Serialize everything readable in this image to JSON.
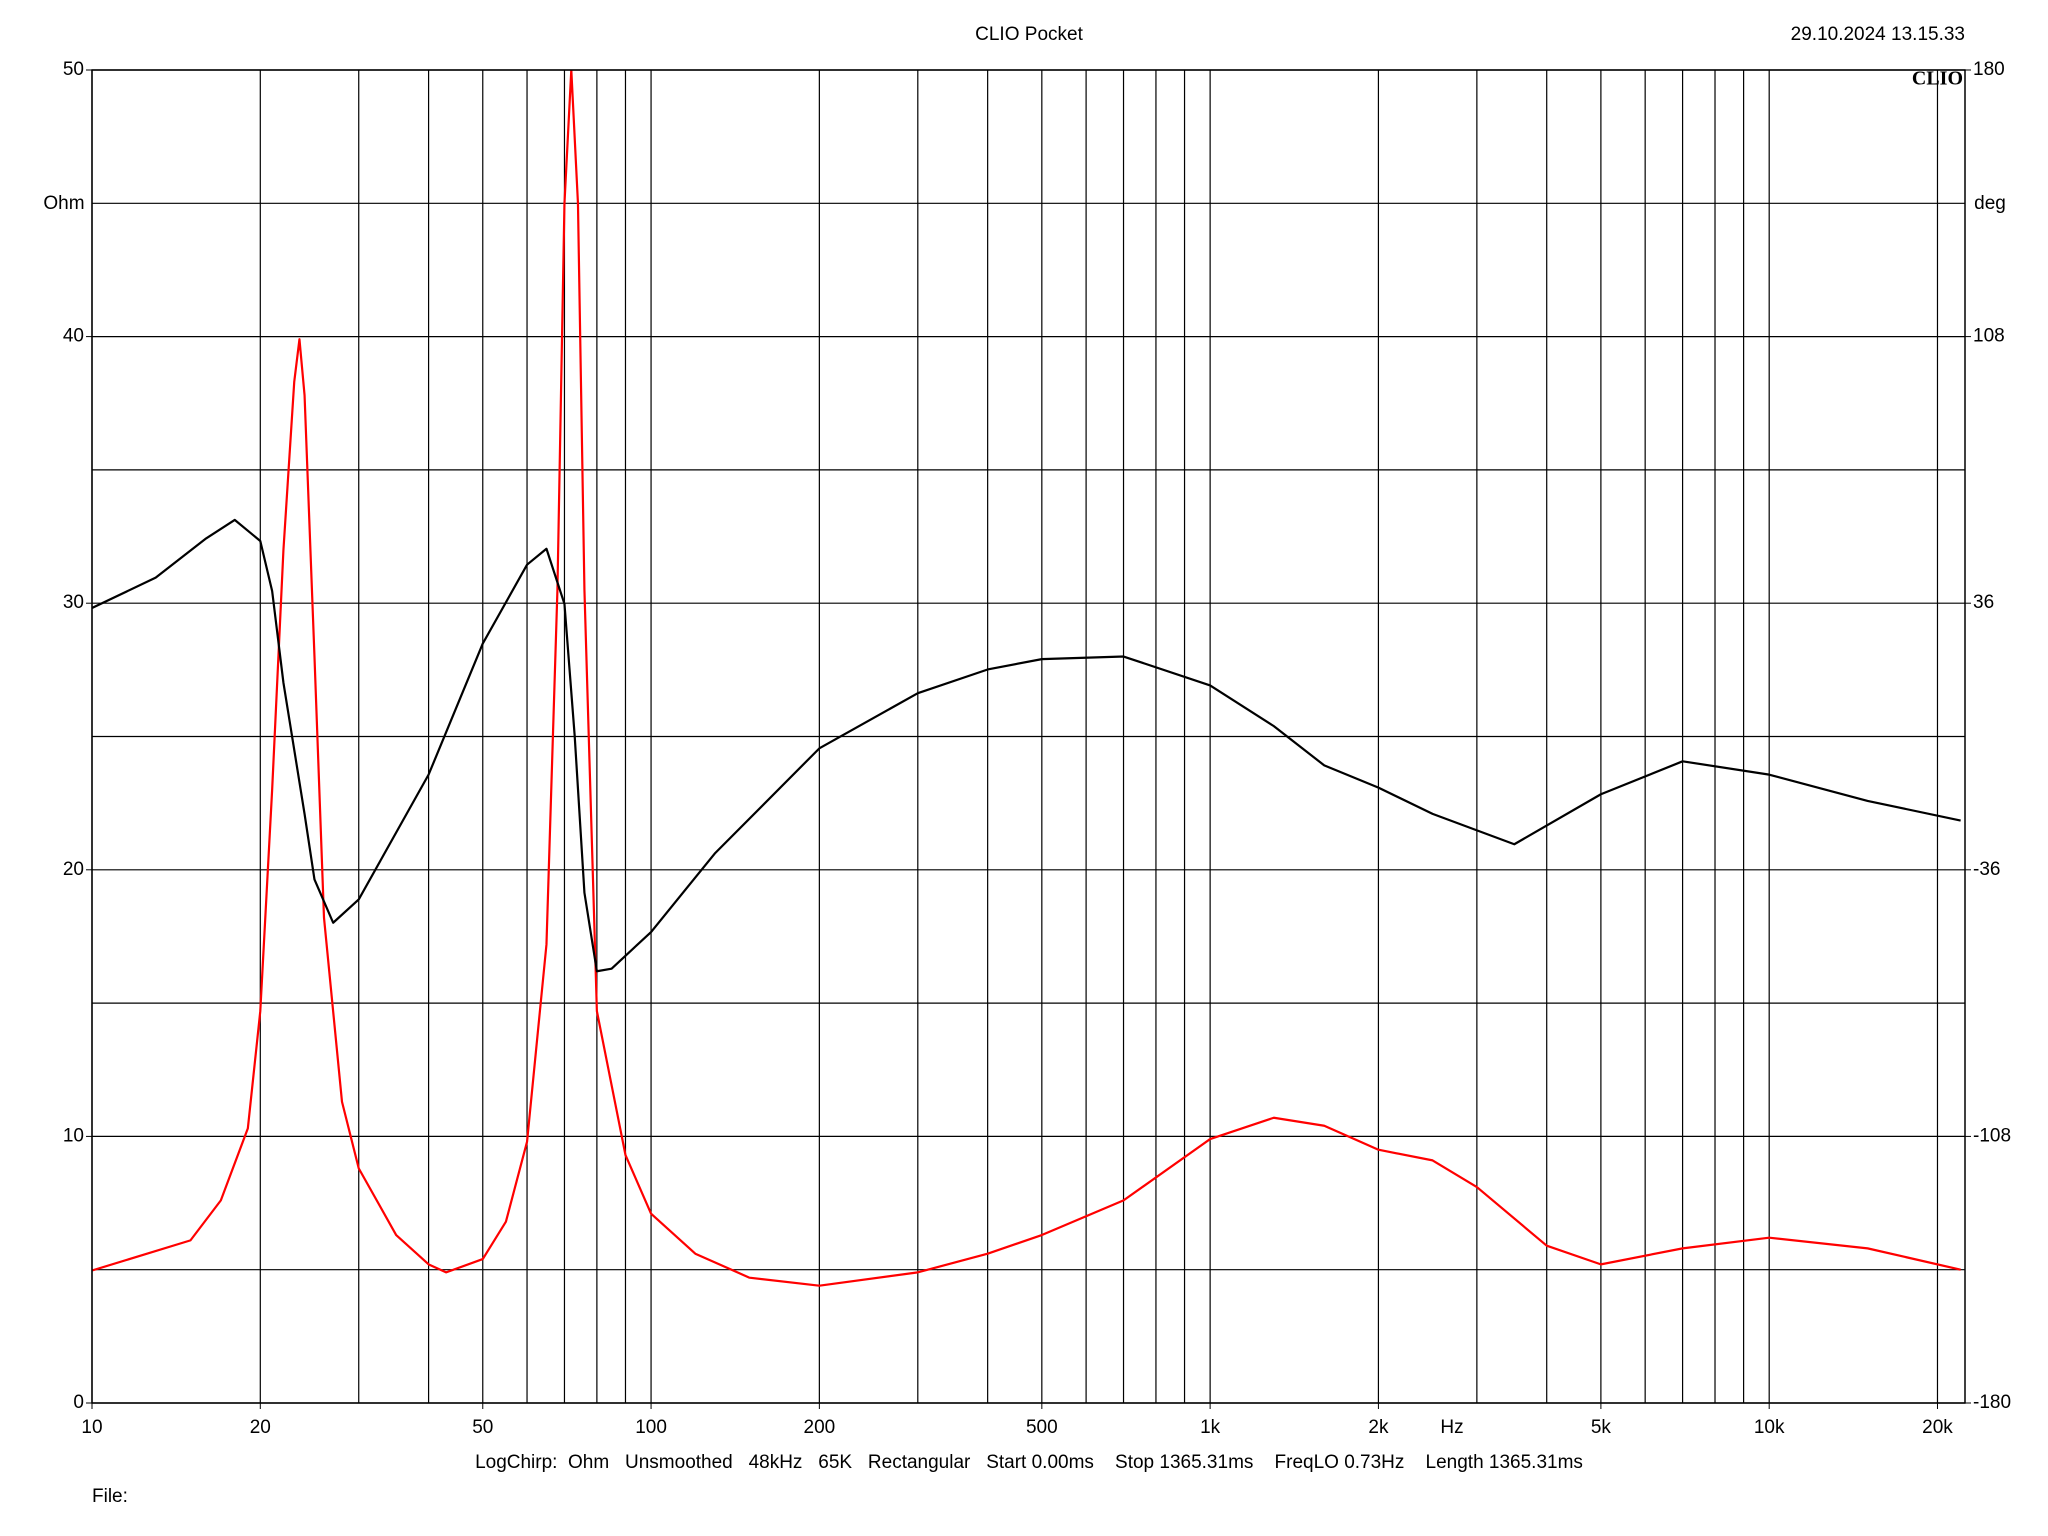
{
  "chart_data": {
    "type": "line",
    "title": "CLIO Pocket",
    "timestamp": "29.10.2024 13.15.33",
    "logo": "CLIO",
    "y_label": "Ohm",
    "y2_label": "deg",
    "x_label": "Hz",
    "footer": "LogChirp:  Ohm   Unsmoothed   48kHz   65K   Rectangular   Start 0.00ms    Stop 1365.31ms    FreqLO 0.73Hz    Length 1365.31ms",
    "file_label": "File:",
    "x_log": true,
    "grid": true,
    "xlim": [
      10,
      22400
    ],
    "xticks": [
      10,
      20,
      50,
      100,
      200,
      500,
      {
        "value": 1000,
        "label": "1k"
      },
      {
        "value": 2000,
        "label": "2k"
      },
      {
        "value": 5000,
        "label": "5k"
      },
      {
        "value": 10000,
        "label": "10k"
      },
      {
        "value": 20000,
        "label": "20k"
      }
    ],
    "xgrid": [
      10,
      20,
      30,
      40,
      50,
      60,
      70,
      80,
      90,
      100,
      200,
      300,
      400,
      500,
      600,
      700,
      800,
      900,
      1000,
      2000,
      3000,
      4000,
      5000,
      6000,
      7000,
      8000,
      9000,
      10000,
      20000
    ],
    "ylim": [
      0,
      50
    ],
    "yticks": [
      0,
      10,
      20,
      30,
      40,
      50
    ],
    "ygrid": [
      0,
      5,
      10,
      15,
      20,
      25,
      30,
      35,
      40,
      45,
      50
    ],
    "y2lim": [
      -180,
      180
    ],
    "y2ticks": [
      -180,
      -108,
      -36,
      36,
      108,
      180
    ],
    "series": [
      {
        "color": "#ff0000",
        "x": [
          10,
          15,
          17,
          19,
          20,
          21,
          22,
          23,
          23.5,
          24,
          25,
          26,
          28,
          30,
          35,
          40,
          43,
          50,
          55,
          60,
          65,
          68,
          70,
          72,
          74,
          76,
          80,
          90,
          100,
          120,
          150,
          200,
          300,
          400,
          500,
          700,
          1000,
          1300,
          1600,
          2000,
          2500,
          3000,
          4000,
          5000,
          7000,
          10000,
          15000,
          22000
        ],
        "values": [
          4.97,
          6.1,
          7.6,
          10.3,
          14.7,
          23,
          32,
          38.3,
          39.9,
          37.8,
          28,
          18.2,
          11.3,
          8.8,
          6.3,
          5.2,
          4.9,
          5.4,
          6.8,
          9.8,
          17.2,
          30.5,
          45,
          50,
          45,
          30.5,
          14.7,
          9.3,
          7.1,
          5.6,
          4.7,
          4.4,
          4.9,
          5.6,
          6.3,
          7.6,
          9.9,
          10.7,
          10.4,
          9.5,
          9.1,
          8.1,
          5.9,
          5.2,
          5.8,
          6.2,
          5.8,
          5.0
        ]
      },
      {
        "color": "#000000",
        "axis": "y2",
        "x": [
          10,
          13,
          16,
          18,
          20,
          21,
          22,
          24,
          25,
          27,
          30,
          40,
          50,
          60,
          65,
          70,
          73,
          76,
          80,
          85,
          100,
          130,
          200,
          300,
          400,
          500,
          700,
          1000,
          1300,
          1600,
          2000,
          2500,
          3500,
          5000,
          7000,
          10000,
          15000,
          22000
        ],
        "values": [
          34.7,
          42.9,
          53.5,
          58.5,
          52.8,
          39.3,
          14.5,
          -20.9,
          -38.6,
          -50.3,
          -44,
          -10.3,
          25.1,
          46.4,
          50.7,
          35.8,
          0.3,
          -42.2,
          -63.4,
          -62.7,
          -52.8,
          -31.6,
          -3.2,
          11.7,
          18.1,
          20.9,
          21.6,
          13.8,
          2.8,
          -7.8,
          -13.8,
          -20.9,
          -29.1,
          -15.6,
          -6.7,
          -10.3,
          -17.4,
          -22.7
        ]
      }
    ]
  }
}
